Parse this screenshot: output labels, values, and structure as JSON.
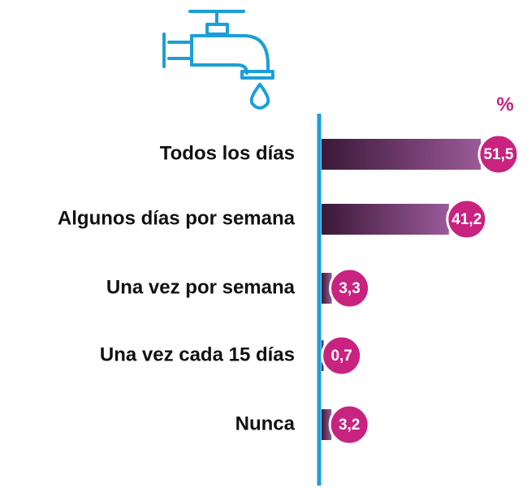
{
  "chart_data": {
    "type": "bar",
    "orientation": "horizontal",
    "unit_label": "%",
    "categories": [
      "Todos los días",
      "Algunos días por semana",
      "Una vez por semana",
      "Una vez cada 15 días",
      "Nunca"
    ],
    "values": [
      51.5,
      41.2,
      3.3,
      0.7,
      3.2
    ],
    "value_labels": [
      "51,5",
      "41,2",
      "3,3",
      "0,7",
      "3,2"
    ],
    "color": "#c8237f"
  }
}
